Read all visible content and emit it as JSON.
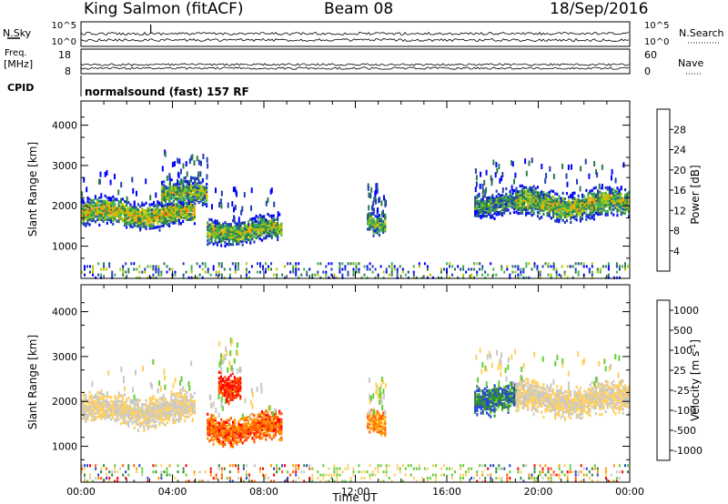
{
  "header": {
    "station": "King Salmon (fitACF)",
    "beam": "Beam 08",
    "date": "18/Sep/2016"
  },
  "noise": {
    "left_label": "N.Sky",
    "right_label": "N.Search",
    "ticks": [
      "10^5",
      "10^0"
    ]
  },
  "freq": {
    "left_label_1": "Freq.",
    "left_label_2": "[MHz]",
    "left_ticks": [
      "18",
      "8"
    ],
    "right_label": "Nave",
    "right_ticks": [
      "60",
      "0"
    ]
  },
  "cpid": {
    "label": "CPID",
    "program": "normalsound (fast) 157 RF"
  },
  "colors": {
    "power": [
      "#0000ff",
      "#1e3fb4",
      "#2b7a4b",
      "#3fb04d",
      "#b4c800",
      "#ffa000",
      "#ff5000",
      "#ff0000"
    ],
    "velocity": [
      "#ff0000",
      "#ff5a00",
      "#ff9a00",
      "#ffd060",
      "#c8c8c8",
      "#66cc33",
      "#2e8b2e",
      "#2244cc"
    ]
  },
  "chart_data": [
    {
      "type": "heatmap",
      "name": "power",
      "ylabel": "Slant Range [km]",
      "xlabel": "Time UT",
      "x_ticks": [
        "00:00",
        "04:00",
        "08:00",
        "12:00",
        "16:00",
        "20:00",
        "00:00"
      ],
      "xlim_hours": [
        0,
        24
      ],
      "y_ticks": [
        "1000",
        "2000",
        "3000",
        "4000"
      ],
      "ylim_km": [
        200,
        4600
      ],
      "colorbar": {
        "label": "Power [dB]",
        "ticks": [
          "4",
          "8",
          "12",
          "16",
          "20",
          "24",
          "28"
        ],
        "range": [
          0,
          32
        ]
      },
      "echo_regions": [
        {
          "t_start": 0.0,
          "t_end": 5.0,
          "r_low": 1400,
          "r_high": 2150,
          "level": 0.55
        },
        {
          "t_start": 3.5,
          "t_end": 5.5,
          "r_low": 1900,
          "r_high": 2600,
          "level": 0.45
        },
        {
          "t_start": 5.5,
          "t_end": 8.8,
          "r_low": 1000,
          "r_high": 1700,
          "level": 0.5
        },
        {
          "t_start": 12.5,
          "t_end": 13.3,
          "r_low": 1200,
          "r_high": 1800,
          "level": 0.45
        },
        {
          "t_start": 17.2,
          "t_end": 19.0,
          "r_low": 1700,
          "r_high": 2400,
          "level": 0.35
        },
        {
          "t_start": 19.0,
          "t_end": 24.0,
          "r_low": 1600,
          "r_high": 2400,
          "level": 0.5
        }
      ]
    },
    {
      "type": "heatmap",
      "name": "velocity",
      "ylabel": "Slant Range [km]",
      "xlabel": "Time UT",
      "x_ticks": [
        "00:00",
        "04:00",
        "08:00",
        "12:00",
        "16:00",
        "20:00",
        "00:00"
      ],
      "xlim_hours": [
        0,
        24
      ],
      "y_ticks": [
        "1000",
        "2000",
        "3000",
        "4000"
      ],
      "ylim_km": [
        200,
        4600
      ],
      "colorbar": {
        "label_main": "Velocity [m s",
        "label_sup": "-1",
        "label_end": "]",
        "ticks": [
          "1000",
          "500",
          "100",
          "25",
          "-25",
          "-100",
          "-500",
          "-1000"
        ]
      },
      "echo_regions": [
        {
          "t_start": 0.0,
          "t_end": 5.0,
          "r_low": 1400,
          "r_high": 2150,
          "level": 0.5
        },
        {
          "t_start": 5.5,
          "t_end": 8.8,
          "r_low": 1000,
          "r_high": 1700,
          "level": 0.2
        },
        {
          "t_start": 6.0,
          "t_end": 7.0,
          "r_low": 2000,
          "r_high": 2700,
          "level": 0.1
        },
        {
          "t_start": 12.5,
          "t_end": 13.3,
          "r_low": 1200,
          "r_high": 1800,
          "level": 0.3
        },
        {
          "t_start": 17.2,
          "t_end": 19.0,
          "r_low": 1700,
          "r_high": 2400,
          "level": 0.85
        },
        {
          "t_start": 19.0,
          "t_end": 24.0,
          "r_low": 1600,
          "r_high": 2400,
          "level": 0.5
        }
      ]
    }
  ]
}
